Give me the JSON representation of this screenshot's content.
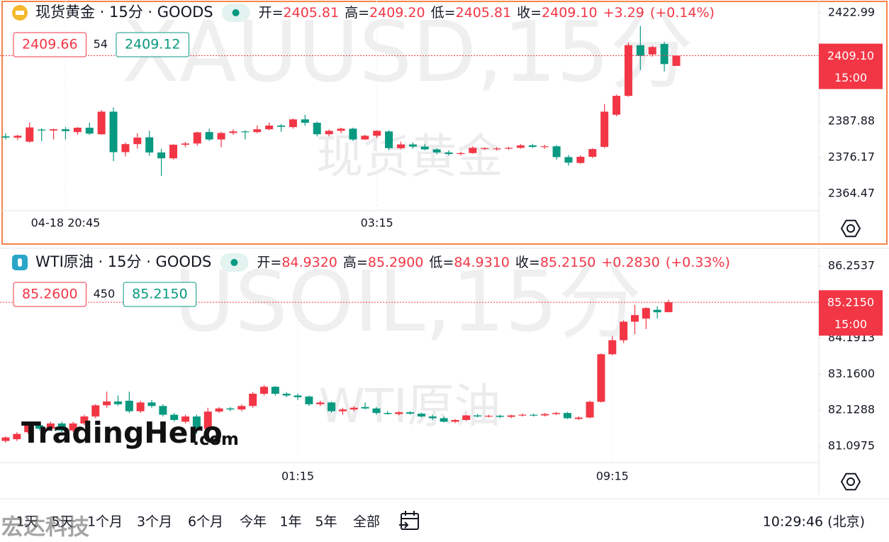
{
  "chart_data": [
    {
      "type": "candlestick",
      "title": "现货黄金 · 15分 · GOODS",
      "watermark": "XAUUSD,15分",
      "watermark_sub": "现货黄金",
      "ohlc_labels": [
        "开=",
        "高=",
        "低=",
        "收="
      ],
      "ohlc": [
        "2405.81",
        "2409.20",
        "2405.81",
        "2409.10"
      ],
      "change": "+3.29",
      "change_pct": "(+0.14%)",
      "sell": "2409.66",
      "spread": "54",
      "buy": "2409.12",
      "last_price": {
        "value": 2409.1,
        "label": "2409.10"
      },
      "last_time": "15:00",
      "up_color": "#f23645",
      "down_color": "#089981",
      "ylim": [
        2358.96,
        2427.12
      ],
      "yticks": [
        2422.99,
        2387.88,
        2376.17,
        2364.47
      ],
      "categories": [
        null,
        null,
        null,
        null,
        null,
        "04-18 20:45",
        null,
        null,
        null,
        null,
        null,
        null,
        null,
        null,
        null,
        null,
        null,
        null,
        null,
        null,
        null,
        null,
        null,
        null,
        null,
        null,
        null,
        null,
        null,
        null,
        null,
        "03:15",
        null,
        null,
        null,
        null,
        null,
        null,
        null,
        null,
        null,
        null,
        null,
        null,
        null,
        null,
        null,
        null,
        null,
        null,
        null,
        null,
        null,
        null,
        null,
        null,
        null
      ],
      "open": [
        2383.0,
        2382.6,
        2381.3,
        2385.2,
        2384.9,
        2385.3,
        2384.4,
        2385.8,
        2383.7,
        2391.0,
        2377.9,
        2380.5,
        2382.7,
        2377.8,
        2375.9,
        2380.3,
        2380.7,
        2384.4,
        2382.0,
        2384.1,
        2384.6,
        2384.4,
        2385.3,
        2386.5,
        2386.0,
        2388.5,
        2387.4,
        2383.7,
        2384.8,
        2385.5,
        2382.0,
        2383.2,
        2384.6,
        2379.2,
        2380.4,
        2379.7,
        2378.8,
        2377.8,
        2377.3,
        2377.6,
        2379.0,
        2378.9,
        2379.1,
        2379.3,
        2380.1,
        2379.6,
        2379.8,
        2376.3,
        2374.4,
        2376.4,
        2379.6,
        2390.0,
        2396.1,
        2412.5,
        2409.5,
        2412.9,
        2405.81
      ],
      "high": [
        2384.0,
        2383.5,
        2387.5,
        2385.6,
        2385.5,
        2386.0,
        2386.0,
        2387.5,
        2391.5,
        2392.4,
        2381.0,
        2384.0,
        2384.8,
        2379.0,
        2380.5,
        2381.2,
        2384.5,
        2385.5,
        2384.5,
        2385.3,
        2385.0,
        2386.5,
        2387.5,
        2387.0,
        2388.8,
        2390.0,
        2387.8,
        2385.2,
        2385.8,
        2385.8,
        2383.5,
        2385.0,
        2385.0,
        2381.3,
        2381.0,
        2380.5,
        2379.2,
        2378.5,
        2378.0,
        2379.8,
        2379.4,
        2379.5,
        2379.6,
        2380.5,
        2380.6,
        2380.3,
        2380.2,
        2377.0,
        2376.9,
        2379.2,
        2393.5,
        2396.5,
        2413.4,
        2418.7,
        2412.3,
        2413.6,
        2409.2
      ],
      "low": [
        2382.0,
        2381.8,
        2381.0,
        2381.5,
        2382.0,
        2382.0,
        2383.5,
        2383.5,
        2383.5,
        2375.0,
        2376.5,
        2379.0,
        2376.7,
        2370.2,
        2375.5,
        2379.5,
        2380.0,
        2381.5,
        2379.5,
        2383.5,
        2382.0,
        2384.0,
        2385.0,
        2384.5,
        2385.5,
        2386.5,
        2383.0,
        2383.0,
        2384.0,
        2381.5,
        2381.8,
        2382.5,
        2378.5,
        2378.8,
        2379.0,
        2378.5,
        2377.2,
        2376.8,
        2376.8,
        2377.4,
        2378.6,
        2378.4,
        2378.6,
        2379.0,
        2379.3,
        2379.0,
        2375.5,
        2373.5,
        2374.1,
        2376.0,
        2379.2,
        2389.5,
        2395.8,
        2404.5,
        2408.8,
        2404.0,
        2405.81
      ],
      "close": [
        2382.6,
        2383.2,
        2385.9,
        2384.9,
        2385.3,
        2384.7,
        2385.8,
        2383.9,
        2391.0,
        2377.9,
        2380.5,
        2382.6,
        2377.8,
        2375.9,
        2380.3,
        2380.7,
        2384.3,
        2382.0,
        2384.1,
        2384.6,
        2384.4,
        2385.3,
        2386.5,
        2386.1,
        2388.5,
        2387.4,
        2383.7,
        2384.8,
        2385.5,
        2382.0,
        2383.2,
        2384.8,
        2379.2,
        2380.4,
        2379.7,
        2378.8,
        2377.8,
        2377.3,
        2377.6,
        2379.3,
        2379.2,
        2379.1,
        2379.3,
        2380.1,
        2379.6,
        2379.8,
        2376.3,
        2374.5,
        2376.4,
        2378.9,
        2391.0,
        2396.1,
        2412.5,
        2409.1,
        2411.9,
        2406.4,
        2409.1
      ]
    },
    {
      "type": "candlestick",
      "title": "WTI原油 · 15分 · GOODS",
      "watermark": "USOIL,15分",
      "watermark_sub": "WTI原油",
      "ohlc_labels": [
        "开=",
        "高=",
        "低=",
        "收="
      ],
      "ohlc": [
        "84.9320",
        "85.2900",
        "84.9310",
        "85.2150"
      ],
      "change": "+0.2830",
      "change_pct": "(+0.33%)",
      "sell": "85.2600",
      "spread": "450",
      "buy": "85.2150",
      "last_price": {
        "value": 85.215,
        "label": "85.2150"
      },
      "last_time": "15:00",
      "up_color": "#f23645",
      "down_color": "#089981",
      "ylim": [
        80.6324,
        86.7188
      ],
      "yticks": [
        86.2537,
        84.1913,
        {
          "value": 83.16,
          "label": "83.1600"
        },
        82.1288,
        81.0975
      ],
      "categories": [
        null,
        null,
        null,
        null,
        null,
        null,
        null,
        null,
        null,
        null,
        null,
        null,
        null,
        null,
        null,
        null,
        null,
        null,
        null,
        null,
        null,
        null,
        null,
        null,
        null,
        null,
        "01:15",
        null,
        null,
        null,
        null,
        null,
        null,
        null,
        null,
        null,
        null,
        null,
        null,
        null,
        null,
        null,
        null,
        null,
        null,
        null,
        null,
        null,
        null,
        null,
        null,
        null,
        null,
        null,
        "09:15",
        null,
        null,
        null,
        null,
        null
      ],
      "open": [
        81.25,
        81.3,
        81.5,
        81.7,
        81.6,
        81.75,
        81.55,
        81.75,
        81.95,
        82.27,
        82.38,
        82.4,
        82.1,
        82.35,
        82.25,
        82.0,
        81.8,
        81.95,
        81.59,
        82.09,
        82.18,
        82.15,
        82.25,
        82.6,
        82.8,
        82.6,
        82.55,
        82.52,
        82.3,
        82.35,
        82.1,
        82.15,
        82.22,
        82.18,
        82.05,
        82.02,
        82.07,
        82.03,
        81.95,
        81.9,
        81.8,
        81.85,
        81.98,
        81.95,
        81.97,
        81.94,
        81.98,
        82.0,
        81.98,
        82.02,
        82.05,
        81.88,
        81.92,
        82.37,
        83.73,
        84.13,
        84.66,
        84.75,
        85.0,
        84.932
      ],
      "high": [
        81.38,
        81.5,
        81.75,
        81.78,
        81.8,
        81.8,
        81.8,
        82.0,
        82.3,
        82.66,
        82.55,
        82.66,
        82.4,
        82.42,
        82.3,
        82.05,
        82.0,
        82.0,
        82.2,
        82.22,
        82.22,
        82.3,
        82.65,
        82.85,
        82.82,
        82.65,
        82.6,
        82.55,
        82.4,
        82.38,
        82.2,
        82.25,
        82.35,
        82.22,
        82.1,
        82.1,
        82.1,
        82.06,
        82.0,
        81.95,
        81.88,
        82.0,
        82.02,
        82.0,
        82.0,
        82.0,
        82.03,
        82.03,
        82.05,
        82.08,
        82.08,
        81.95,
        82.4,
        83.75,
        84.25,
        84.7,
        85.14,
        85.08,
        85.1,
        85.29
      ],
      "low": [
        81.2,
        81.25,
        81.45,
        81.55,
        81.55,
        81.5,
        81.5,
        81.7,
        81.9,
        82.2,
        82.25,
        82.05,
        82.05,
        82.2,
        81.95,
        81.8,
        81.75,
        81.45,
        81.5,
        82.05,
        82.1,
        82.1,
        82.2,
        82.55,
        82.55,
        82.5,
        82.42,
        82.25,
        82.25,
        82.05,
        82.0,
        82.1,
        82.15,
        82.0,
        82.0,
        81.98,
        82.0,
        81.92,
        81.85,
        81.78,
        81.76,
        81.82,
        81.92,
        81.92,
        81.9,
        81.9,
        81.95,
        81.95,
        81.95,
        81.99,
        81.88,
        81.85,
        81.9,
        82.35,
        83.7,
        84.05,
        84.3,
        84.45,
        84.75,
        84.931
      ],
      "close": [
        81.35,
        81.45,
        81.7,
        81.6,
        81.75,
        81.55,
        81.75,
        81.95,
        82.27,
        82.38,
        82.3,
        82.1,
        82.35,
        82.25,
        82.0,
        81.85,
        81.95,
        81.6,
        82.09,
        82.18,
        82.15,
        82.25,
        82.6,
        82.8,
        82.6,
        82.55,
        82.5,
        82.3,
        82.35,
        82.1,
        82.15,
        82.2,
        82.18,
        82.05,
        82.02,
        82.07,
        82.03,
        81.95,
        81.9,
        81.8,
        81.85,
        81.98,
        81.95,
        81.97,
        81.94,
        81.98,
        82.0,
        81.98,
        82.02,
        82.05,
        81.9,
        81.92,
        82.37,
        83.73,
        84.13,
        84.66,
        84.85,
        85.05,
        84.93,
        85.215
      ]
    }
  ],
  "overlays": {
    "logo_main": "TradingHero",
    "logo_suffix": ".com",
    "corner_mark": "宏达科技"
  },
  "toolbar": {
    "ranges": [
      "1天",
      "5天",
      "1个月",
      "3个月",
      "6个月",
      "今年",
      "1年",
      "5年",
      "全部"
    ],
    "time": "10:29:46 (北京)"
  }
}
